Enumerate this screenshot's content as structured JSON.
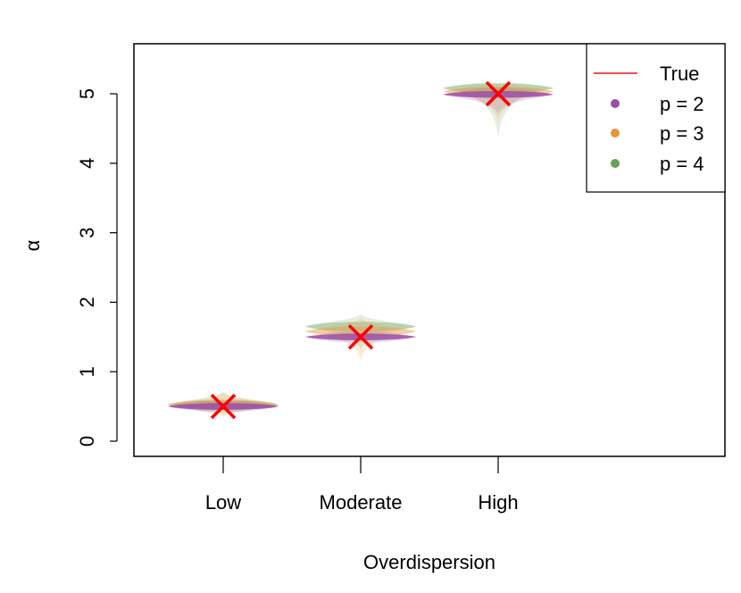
{
  "chart_data": {
    "type": "violin",
    "title": "",
    "xlabel": "Overdispersion",
    "ylabel": "α",
    "categories": [
      "Low",
      "Moderate",
      "High"
    ],
    "ylim": [
      -0.2,
      5.7
    ],
    "yticks": [
      0,
      1,
      2,
      3,
      4,
      5
    ],
    "true_values": [
      0.5,
      1.5,
      5.0
    ],
    "series": [
      {
        "name": "p = 2",
        "color": "#9B4EA4",
        "centers": [
          0.5,
          1.5,
          4.99
        ],
        "ranges": [
          [
            0.45,
            0.56
          ],
          [
            1.44,
            1.57
          ],
          [
            4.7,
            5.08
          ]
        ]
      },
      {
        "name": "p = 3",
        "color": "#E8943A",
        "centers": [
          0.53,
          1.58,
          5.03
        ],
        "ranges": [
          [
            0.35,
            0.72
          ],
          [
            1.15,
            1.78
          ],
          [
            4.6,
            5.12
          ]
        ]
      },
      {
        "name": "p = 4",
        "color": "#6A9F55",
        "centers": [
          0.52,
          1.65,
          5.08
        ],
        "ranges": [
          [
            0.38,
            0.7
          ],
          [
            1.3,
            1.83
          ],
          [
            4.35,
            5.15
          ]
        ]
      }
    ],
    "legend": {
      "position": "top-right",
      "entries": [
        {
          "label": "True",
          "color": "#E8131B",
          "symbol": "line"
        },
        {
          "label": "p = 2",
          "color": "#9B4EA4",
          "symbol": "dot"
        },
        {
          "label": "p = 3",
          "color": "#E8943A",
          "symbol": "dot"
        },
        {
          "label": "p = 4",
          "color": "#6A9F55",
          "symbol": "dot"
        }
      ]
    },
    "true_marker_color": "#FF0000"
  }
}
